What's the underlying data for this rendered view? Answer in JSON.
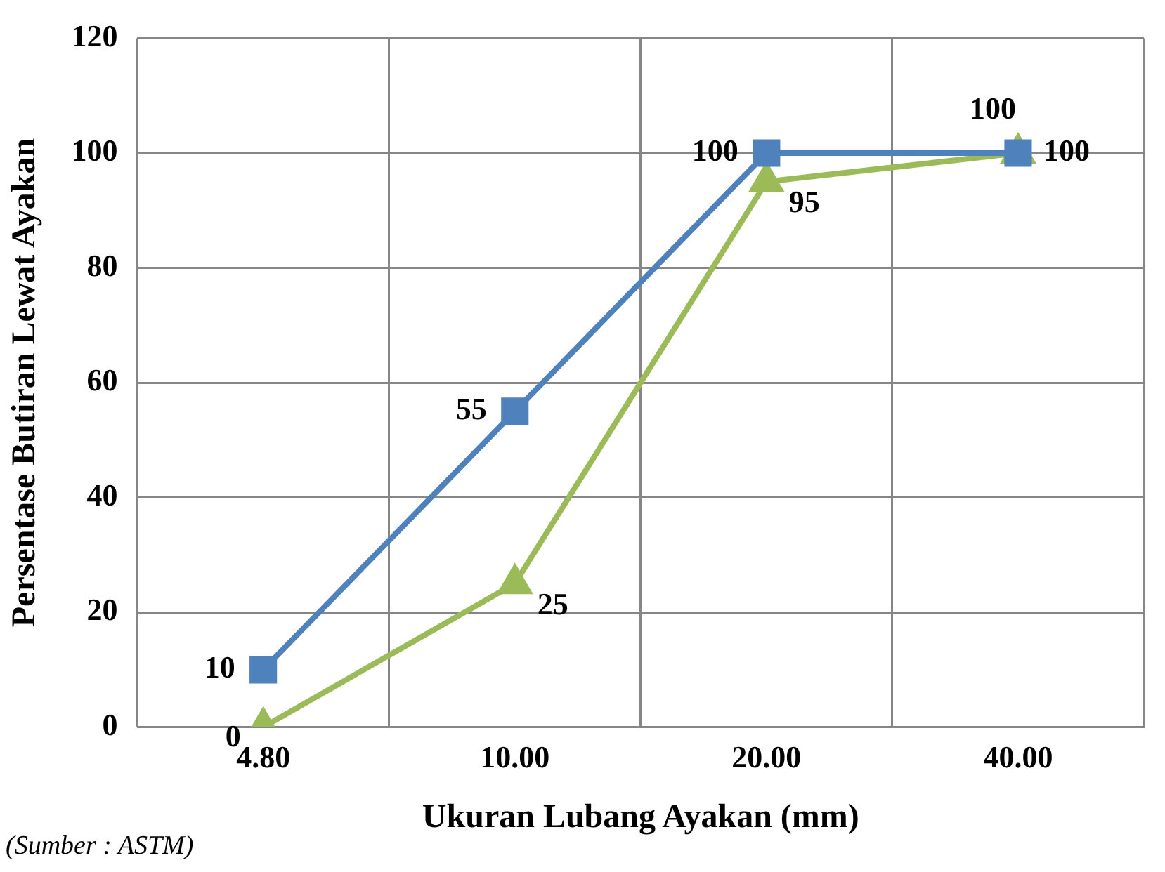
{
  "chart_data": {
    "type": "line",
    "xlabel": "Ukuran Lubang Ayakan (mm)",
    "ylabel": "Persentase Butiran Lewat Ayakan",
    "categories": [
      "4.80",
      "10.00",
      "20.00",
      "40.00"
    ],
    "series": [
      {
        "color": "#4f81bd",
        "values": [
          10,
          55,
          100,
          100
        ],
        "marker": "square"
      },
      {
        "color": "#9bbb59",
        "values": [
          0,
          25,
          95,
          100
        ],
        "marker": "triangle"
      }
    ],
    "ylim": [
      0,
      120
    ],
    "yticks": [
      0,
      20,
      40,
      60,
      80,
      100,
      120
    ],
    "grid": true,
    "legend": false,
    "data_labels": true,
    "line_style": "solid",
    "annotations": [
      "(Sumber : ASTM)"
    ]
  }
}
